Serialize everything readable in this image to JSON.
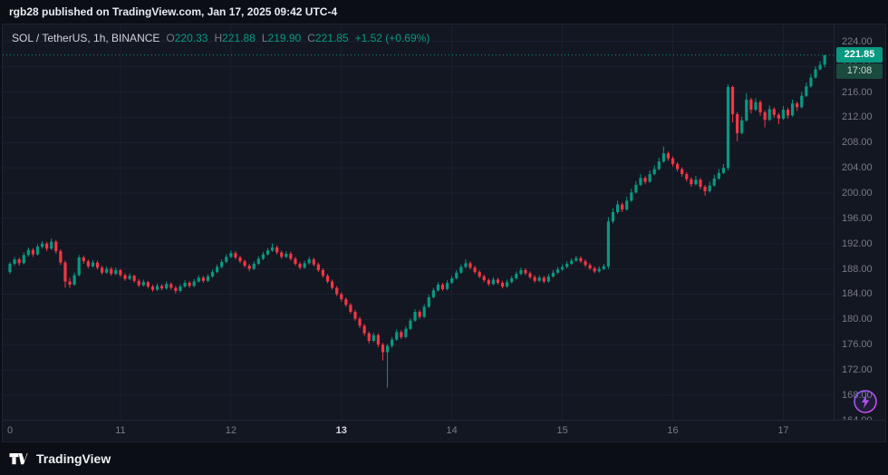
{
  "header": {
    "attribution": "rgb28 published on TradingView.com, Jan 17, 2025 09:42 UTC-4"
  },
  "legend": {
    "symbol": "SOL / TetherUS, 1h, BINANCE",
    "o_label": "O",
    "o": "220.33",
    "h_label": "H",
    "h": "221.88",
    "l_label": "L",
    "l": "219.90",
    "c_label": "C",
    "c": "221.85",
    "change": "+1.52 (+0.69%)"
  },
  "price_line": {
    "price": 221.85,
    "value": "221.85",
    "countdown": "17:08"
  },
  "footer": {
    "brand": "TradingView"
  },
  "icons": {
    "boost": "lightning-bolt-icon",
    "brand": "tradingview-logo-icon"
  },
  "colors": {
    "up": "#089981",
    "down": "#f23645",
    "background": "#131722",
    "page": "#0b0e15",
    "grid": "#1c2130",
    "text_muted": "#787b86",
    "badge_countdown": "#1b4a3e",
    "boost_purple": "#a855f7"
  },
  "chart_data": {
    "type": "candlestick",
    "title": "SOL / TetherUS, 1h, BINANCE",
    "symbol": "SOL/USDT",
    "interval": "1h",
    "exchange": "BINANCE",
    "ohlc_current": {
      "open": 220.33,
      "high": 221.88,
      "low": 219.9,
      "close": 221.85,
      "change": 1.52,
      "change_pct": 0.69
    },
    "last_price": 221.85,
    "countdown": "17:08",
    "ylim": [
      162.5,
      226.7
    ],
    "y_ticks": [
      224,
      220,
      216,
      212,
      208,
      204,
      200,
      196,
      192,
      188,
      184,
      180,
      176,
      172,
      168,
      164
    ],
    "x_labels": [
      {
        "text": "0",
        "index": 0,
        "highlight": false
      },
      {
        "text": "11",
        "index": 24,
        "highlight": false
      },
      {
        "text": "12",
        "index": 48,
        "highlight": false
      },
      {
        "text": "13",
        "index": 72,
        "highlight": true
      },
      {
        "text": "14",
        "index": 96,
        "highlight": false
      },
      {
        "text": "15",
        "index": 120,
        "highlight": false
      },
      {
        "text": "16",
        "index": 144,
        "highlight": false
      },
      {
        "text": "17",
        "index": 168,
        "highlight": false
      }
    ],
    "day_start_indices": [
      24,
      48,
      72,
      96,
      120,
      144,
      168
    ],
    "candles": [
      [
        187.5,
        189.1,
        187.2,
        188.8
      ],
      [
        188.8,
        189.9,
        188.5,
        189.5
      ],
      [
        189.5,
        189.8,
        188.5,
        188.9
      ],
      [
        188.9,
        190.6,
        188.7,
        190.2
      ],
      [
        190.2,
        191.4,
        189.9,
        191.0
      ],
      [
        191.0,
        191.3,
        189.9,
        190.3
      ],
      [
        190.3,
        191.9,
        190.1,
        191.5
      ],
      [
        191.5,
        192.4,
        191.2,
        192.0
      ],
      [
        192.0,
        192.3,
        190.8,
        191.2
      ],
      [
        191.2,
        192.8,
        191.0,
        192.3
      ],
      [
        192.3,
        192.6,
        190.4,
        190.8
      ],
      [
        190.8,
        191.1,
        188.6,
        189.0
      ],
      [
        189.0,
        189.3,
        185.0,
        186.0
      ],
      [
        186.0,
        186.6,
        185.0,
        185.5
      ],
      [
        185.5,
        187.4,
        185.3,
        187.0
      ],
      [
        187.0,
        190.2,
        186.8,
        189.8
      ],
      [
        189.8,
        190.1,
        188.8,
        189.2
      ],
      [
        189.2,
        189.5,
        188.1,
        188.4
      ],
      [
        188.4,
        189.4,
        188.2,
        189.0
      ],
      [
        189.0,
        189.3,
        187.9,
        188.2
      ],
      [
        188.2,
        188.5,
        187.1,
        187.4
      ],
      [
        187.4,
        188.4,
        187.2,
        188.0
      ],
      [
        188.0,
        188.3,
        186.9,
        187.2
      ],
      [
        187.2,
        188.2,
        187.0,
        187.8
      ],
      [
        187.8,
        188.0,
        186.7,
        187.0
      ],
      [
        187.0,
        187.3,
        186.1,
        186.4
      ],
      [
        186.4,
        187.3,
        186.2,
        186.9
      ],
      [
        186.9,
        187.1,
        185.8,
        186.1
      ],
      [
        186.1,
        186.4,
        185.1,
        185.4
      ],
      [
        185.4,
        186.3,
        185.2,
        185.9
      ],
      [
        185.9,
        186.1,
        184.9,
        185.2
      ],
      [
        185.2,
        185.5,
        184.4,
        184.7
      ],
      [
        184.7,
        185.7,
        184.5,
        185.3
      ],
      [
        185.3,
        185.6,
        184.6,
        184.9
      ],
      [
        184.9,
        186.0,
        184.7,
        185.6
      ],
      [
        185.6,
        185.9,
        184.7,
        185.0
      ],
      [
        185.0,
        185.3,
        184.1,
        184.5
      ],
      [
        184.5,
        185.6,
        184.3,
        185.2
      ],
      [
        185.2,
        186.2,
        185.0,
        185.8
      ],
      [
        185.8,
        186.1,
        185.0,
        185.3
      ],
      [
        185.3,
        186.4,
        185.1,
        186.0
      ],
      [
        186.0,
        187.0,
        185.8,
        186.6
      ],
      [
        186.6,
        186.9,
        185.8,
        186.1
      ],
      [
        186.1,
        187.2,
        185.9,
        186.8
      ],
      [
        186.8,
        187.9,
        186.6,
        187.5
      ],
      [
        187.5,
        188.7,
        187.3,
        188.3
      ],
      [
        188.3,
        189.5,
        188.1,
        189.1
      ],
      [
        189.1,
        190.3,
        188.9,
        189.9
      ],
      [
        189.9,
        190.9,
        189.7,
        190.5
      ],
      [
        190.5,
        190.8,
        189.5,
        189.8
      ],
      [
        189.8,
        190.1,
        188.9,
        189.2
      ],
      [
        189.2,
        189.5,
        188.2,
        188.5
      ],
      [
        188.5,
        188.8,
        187.6,
        188.0
      ],
      [
        188.0,
        189.2,
        187.8,
        188.8
      ],
      [
        188.8,
        190.0,
        188.6,
        189.6
      ],
      [
        189.6,
        190.7,
        189.4,
        190.3
      ],
      [
        190.3,
        191.3,
        190.1,
        190.9
      ],
      [
        190.9,
        192.0,
        190.7,
        191.4
      ],
      [
        191.4,
        191.7,
        190.3,
        190.6
      ],
      [
        190.6,
        190.9,
        189.6,
        189.9
      ],
      [
        189.9,
        190.8,
        189.7,
        190.4
      ],
      [
        190.4,
        190.7,
        189.3,
        189.6
      ],
      [
        189.6,
        189.9,
        188.5,
        188.8
      ],
      [
        188.8,
        189.1,
        187.9,
        188.2
      ],
      [
        188.2,
        189.3,
        188.0,
        188.9
      ],
      [
        188.9,
        189.9,
        188.7,
        189.5
      ],
      [
        189.5,
        189.8,
        188.4,
        188.7
      ],
      [
        188.7,
        189.0,
        187.5,
        187.8
      ],
      [
        187.8,
        188.1,
        186.6,
        186.9
      ],
      [
        186.9,
        187.2,
        185.7,
        186.0
      ],
      [
        186.0,
        186.3,
        184.7,
        185.0
      ],
      [
        185.0,
        185.3,
        183.7,
        184.0
      ],
      [
        184.0,
        184.3,
        182.8,
        183.2
      ],
      [
        183.2,
        183.5,
        182.0,
        182.3
      ],
      [
        182.3,
        182.6,
        180.9,
        181.2
      ],
      [
        181.2,
        181.5,
        179.8,
        180.1
      ],
      [
        180.1,
        180.4,
        178.6,
        179.0
      ],
      [
        179.0,
        179.3,
        177.4,
        177.8
      ],
      [
        177.8,
        178.1,
        176.2,
        176.6
      ],
      [
        176.6,
        177.9,
        176.4,
        177.5
      ],
      [
        177.5,
        177.8,
        175.6,
        176.0
      ],
      [
        176.0,
        176.3,
        173.5,
        174.8
      ],
      [
        174.8,
        176.1,
        169.2,
        175.8
      ],
      [
        175.8,
        177.2,
        175.5,
        176.8
      ],
      [
        176.8,
        178.4,
        176.6,
        178.0
      ],
      [
        178.0,
        178.3,
        176.9,
        177.2
      ],
      [
        177.2,
        178.9,
        177.0,
        178.5
      ],
      [
        178.5,
        180.2,
        178.3,
        179.8
      ],
      [
        179.8,
        181.6,
        179.6,
        181.2
      ],
      [
        181.2,
        181.5,
        180.1,
        180.4
      ],
      [
        180.4,
        182.4,
        180.2,
        182.0
      ],
      [
        182.0,
        183.9,
        181.8,
        183.5
      ],
      [
        183.5,
        185.0,
        183.3,
        184.6
      ],
      [
        184.6,
        185.9,
        184.4,
        185.5
      ],
      [
        185.5,
        185.8,
        184.5,
        184.8
      ],
      [
        184.8,
        186.2,
        184.6,
        185.8
      ],
      [
        185.8,
        186.9,
        185.6,
        186.5
      ],
      [
        186.5,
        187.8,
        186.3,
        187.4
      ],
      [
        187.4,
        188.7,
        187.2,
        188.3
      ],
      [
        188.3,
        189.5,
        188.1,
        188.9
      ],
      [
        188.9,
        189.2,
        187.9,
        188.2
      ],
      [
        188.2,
        188.5,
        187.2,
        187.5
      ],
      [
        187.5,
        187.8,
        186.5,
        186.8
      ],
      [
        186.8,
        187.1,
        185.9,
        186.2
      ],
      [
        186.2,
        186.5,
        185.3,
        185.6
      ],
      [
        185.6,
        186.7,
        185.4,
        186.3
      ],
      [
        186.3,
        186.6,
        185.5,
        185.8
      ],
      [
        185.8,
        186.1,
        184.9,
        185.2
      ],
      [
        185.2,
        186.3,
        185.0,
        185.9
      ],
      [
        185.9,
        186.9,
        185.7,
        186.5
      ],
      [
        186.5,
        187.6,
        186.3,
        187.2
      ],
      [
        187.2,
        188.2,
        187.0,
        187.8
      ],
      [
        187.8,
        188.1,
        187.0,
        187.3
      ],
      [
        187.3,
        187.6,
        186.4,
        186.7
      ],
      [
        186.7,
        187.0,
        185.8,
        186.1
      ],
      [
        186.1,
        187.0,
        185.9,
        186.6
      ],
      [
        186.6,
        186.9,
        185.7,
        186.0
      ],
      [
        186.0,
        187.2,
        185.8,
        186.8
      ],
      [
        186.8,
        187.8,
        186.6,
        187.4
      ],
      [
        187.4,
        188.3,
        187.2,
        187.9
      ],
      [
        187.9,
        188.7,
        187.7,
        188.3
      ],
      [
        188.3,
        189.2,
        188.1,
        188.8
      ],
      [
        188.8,
        189.7,
        188.6,
        189.3
      ],
      [
        189.3,
        190.1,
        189.1,
        189.7
      ],
      [
        189.7,
        190.0,
        188.9,
        189.2
      ],
      [
        189.2,
        189.5,
        188.3,
        188.6
      ],
      [
        188.6,
        188.9,
        187.8,
        188.1
      ],
      [
        188.1,
        188.4,
        187.3,
        187.6
      ],
      [
        187.6,
        188.4,
        187.4,
        188.0
      ],
      [
        188.0,
        188.8,
        187.8,
        188.4
      ],
      [
        188.4,
        196.2,
        188.0,
        195.5
      ],
      [
        195.5,
        197.6,
        195.2,
        197.0
      ],
      [
        197.0,
        198.8,
        196.7,
        198.2
      ],
      [
        198.2,
        198.5,
        197.0,
        197.4
      ],
      [
        197.4,
        199.4,
        197.2,
        198.8
      ],
      [
        198.8,
        200.7,
        198.6,
        200.1
      ],
      [
        200.1,
        201.9,
        199.9,
        201.3
      ],
      [
        201.3,
        203.0,
        201.1,
        202.4
      ],
      [
        202.4,
        202.7,
        201.4,
        201.8
      ],
      [
        201.8,
        203.6,
        201.6,
        203.0
      ],
      [
        203.0,
        204.4,
        202.8,
        203.8
      ],
      [
        203.8,
        205.6,
        203.6,
        205.0
      ],
      [
        205.0,
        207.4,
        204.8,
        206.3
      ],
      [
        206.3,
        206.6,
        205.1,
        205.5
      ],
      [
        205.5,
        205.8,
        204.2,
        204.6
      ],
      [
        204.6,
        204.9,
        203.4,
        203.8
      ],
      [
        203.8,
        204.1,
        202.6,
        203.0
      ],
      [
        203.0,
        203.3,
        201.8,
        202.2
      ],
      [
        202.2,
        202.5,
        201.0,
        201.4
      ],
      [
        201.4,
        202.7,
        201.2,
        202.1
      ],
      [
        202.1,
        202.4,
        200.6,
        201.0
      ],
      [
        201.0,
        201.3,
        199.6,
        200.3
      ],
      [
        200.3,
        201.8,
        200.1,
        201.2
      ],
      [
        201.2,
        202.9,
        201.0,
        202.3
      ],
      [
        202.3,
        203.8,
        202.1,
        203.2
      ],
      [
        203.2,
        204.6,
        203.0,
        204.0
      ],
      [
        204.0,
        217.2,
        203.6,
        216.8
      ],
      [
        216.8,
        217.0,
        211.2,
        212.5
      ],
      [
        212.5,
        212.8,
        208.2,
        209.5
      ],
      [
        209.5,
        212.1,
        209.3,
        211.5
      ],
      [
        211.5,
        215.8,
        211.3,
        214.8
      ],
      [
        214.8,
        215.1,
        212.6,
        213.2
      ],
      [
        213.2,
        215.0,
        213.0,
        214.4
      ],
      [
        214.4,
        214.7,
        212.2,
        212.8
      ],
      [
        212.8,
        213.1,
        210.4,
        211.6
      ],
      [
        211.6,
        213.9,
        211.4,
        213.3
      ],
      [
        213.3,
        213.6,
        211.9,
        212.4
      ],
      [
        212.4,
        212.7,
        210.9,
        211.8
      ],
      [
        211.8,
        213.8,
        211.6,
        213.2
      ],
      [
        213.2,
        213.5,
        211.8,
        212.3
      ],
      [
        212.3,
        214.8,
        212.1,
        214.2
      ],
      [
        214.2,
        214.5,
        213.0,
        213.6
      ],
      [
        213.6,
        216.0,
        213.4,
        215.4
      ],
      [
        215.4,
        217.5,
        215.2,
        216.9
      ],
      [
        216.9,
        218.9,
        216.7,
        218.3
      ],
      [
        218.3,
        220.1,
        218.1,
        219.6
      ],
      [
        219.6,
        220.9,
        219.4,
        220.3
      ],
      [
        220.33,
        221.88,
        219.9,
        221.85
      ]
    ]
  }
}
